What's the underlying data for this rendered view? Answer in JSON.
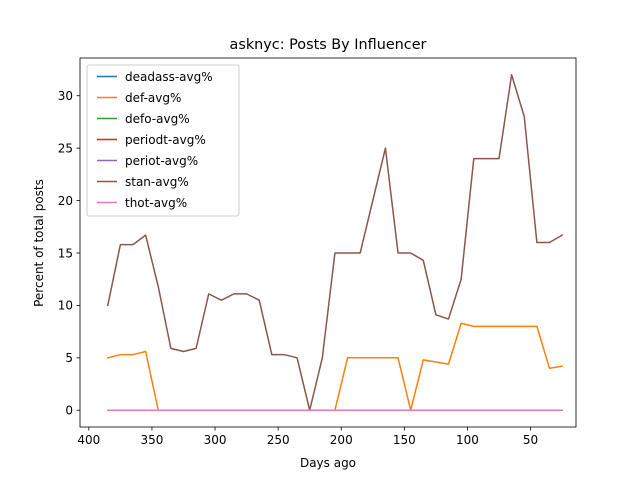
{
  "chart_data": {
    "type": "line",
    "title": "asknyc: Posts By Influencer",
    "xlabel": "Days ago",
    "ylabel": "Percent of total posts",
    "xlim": [
      407,
      14
    ],
    "ylim": [
      -1.6,
      33.6
    ],
    "x_inverted": true,
    "xticks": [
      400,
      350,
      300,
      250,
      200,
      150,
      100,
      50
    ],
    "yticks": [
      0,
      5,
      10,
      15,
      20,
      25,
      30
    ],
    "grid": false,
    "legend_position": "upper-left",
    "x": [
      385,
      375,
      365,
      355,
      345,
      335,
      325,
      315,
      305,
      295,
      285,
      275,
      265,
      255,
      245,
      235,
      225,
      215,
      205,
      195,
      185,
      175,
      165,
      155,
      145,
      135,
      125,
      115,
      105,
      95,
      85,
      75,
      65,
      55,
      45,
      35,
      25
    ],
    "series": [
      {
        "name": "deadass-avg%",
        "color": "#1f77b4",
        "values": [
          0,
          0,
          0,
          0,
          0,
          0,
          0,
          0,
          0,
          0,
          0,
          0,
          0,
          0,
          0,
          0,
          0,
          0,
          0,
          0,
          0,
          0,
          0,
          0,
          0,
          0,
          0,
          0,
          0,
          0,
          0,
          0,
          0,
          0,
          0,
          0,
          0
        ]
      },
      {
        "name": "def-avg%",
        "color": "#ff7f0e",
        "values": [
          5.0,
          5.3,
          5.3,
          5.6,
          0,
          0,
          0,
          0,
          0,
          0,
          0,
          0,
          0,
          0,
          0,
          0,
          0,
          0,
          0,
          5.0,
          5.0,
          5.0,
          5.0,
          5.0,
          0,
          4.8,
          4.6,
          4.4,
          8.3,
          8.0,
          8.0,
          8.0,
          8.0,
          8.0,
          8.0,
          4.0,
          4.2
        ]
      },
      {
        "name": "defo-avg%",
        "color": "#2ca02c",
        "values": [
          0,
          0,
          0,
          0,
          0,
          0,
          0,
          0,
          0,
          0,
          0,
          0,
          0,
          0,
          0,
          0,
          0,
          0,
          0,
          0,
          0,
          0,
          0,
          0,
          0,
          0,
          0,
          0,
          0,
          0,
          0,
          0,
          0,
          0,
          0,
          0,
          0
        ]
      },
      {
        "name": "periodt-avg%",
        "color": "#d62728",
        "values": [
          0,
          0,
          0,
          0,
          0,
          0,
          0,
          0,
          0,
          0,
          0,
          0,
          0,
          0,
          0,
          0,
          0,
          0,
          0,
          0,
          0,
          0,
          0,
          0,
          0,
          0,
          0,
          0,
          0,
          0,
          0,
          0,
          0,
          0,
          0,
          0,
          0
        ]
      },
      {
        "name": "periot-avg%",
        "color": "#9467bd",
        "values": [
          0,
          0,
          0,
          0,
          0,
          0,
          0,
          0,
          0,
          0,
          0,
          0,
          0,
          0,
          0,
          0,
          0,
          0,
          0,
          0,
          0,
          0,
          0,
          0,
          0,
          0,
          0,
          0,
          0,
          0,
          0,
          0,
          0,
          0,
          0,
          0,
          0
        ]
      },
      {
        "name": "stan-avg%",
        "color": "#8c564b",
        "values": [
          10.0,
          15.8,
          15.8,
          16.7,
          11.8,
          5.9,
          5.6,
          5.9,
          11.1,
          10.5,
          11.1,
          11.1,
          10.5,
          5.3,
          5.3,
          5.0,
          0,
          5.0,
          15.0,
          15.0,
          15.0,
          20.0,
          25.0,
          15.0,
          15.0,
          14.3,
          9.1,
          8.7,
          12.5,
          24.0,
          24.0,
          24.0,
          32.0,
          28.0,
          16.0,
          16.0,
          16.7
        ]
      },
      {
        "name": "thot-avg%",
        "color": "#e377c2",
        "values": [
          0,
          0,
          0,
          0,
          0,
          0,
          0,
          0,
          0,
          0,
          0,
          0,
          0,
          0,
          0,
          0,
          0,
          0,
          0,
          0,
          0,
          0,
          0,
          0,
          0,
          0,
          0,
          0,
          0,
          0,
          0,
          0,
          0,
          0,
          0,
          0,
          0
        ]
      }
    ]
  }
}
